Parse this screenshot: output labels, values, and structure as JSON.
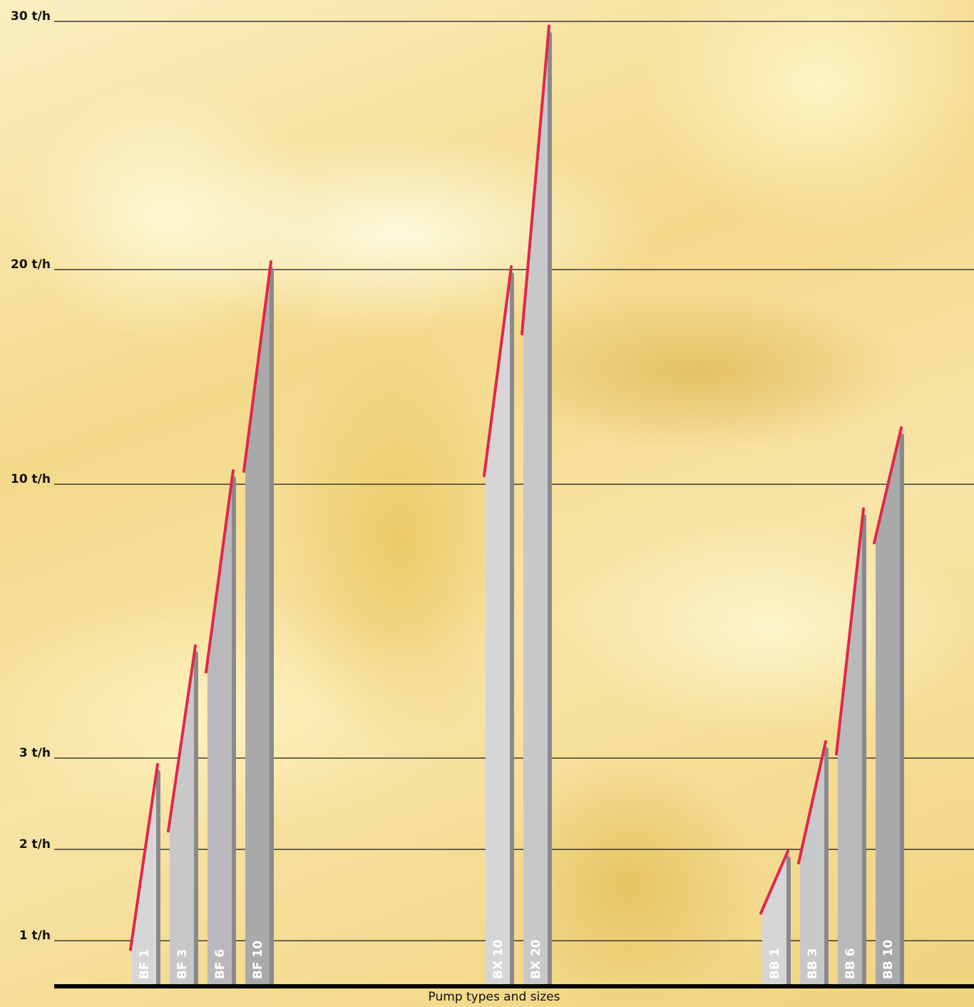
{
  "chart_data": {
    "type": "bar",
    "title": "",
    "xlabel": "Pump types and sizes",
    "ylabel": "",
    "scale": "nonlinear",
    "y_ticks": [
      "1 t/h",
      "2 t/h",
      "3 t/h",
      "10 t/h",
      "20 t/h",
      "30 t/h"
    ],
    "y_tick_values": [
      1,
      2,
      3,
      10,
      20,
      30
    ],
    "grid": true,
    "legend": "none",
    "unit": "t/h",
    "groups": [
      {
        "bars": [
          {
            "label": "BF 1",
            "min": 0.9,
            "max": 2.9
          },
          {
            "label": "BF 3",
            "min": 2.2,
            "max": 5.8
          },
          {
            "label": "BF 6",
            "min": 5.2,
            "max": 10.5
          },
          {
            "label": "BF 10",
            "min": 10.6,
            "max": 20.2
          }
        ]
      },
      {
        "bars": [
          {
            "label": "BX 10",
            "min": 10.4,
            "max": 20.0
          },
          {
            "label": "BX 20",
            "min": 17.0,
            "max": 29.7
          }
        ]
      },
      {
        "bars": [
          {
            "label": "BB 1",
            "min": 1.3,
            "max": 1.95
          },
          {
            "label": "BB 3",
            "min": 1.85,
            "max": 3.35
          },
          {
            "label": "BB 6",
            "min": 3.1,
            "max": 9.3
          },
          {
            "label": "BB 10",
            "min": 8.5,
            "max": 12.5
          }
        ]
      }
    ],
    "colors": {
      "range_line": "#e0284a",
      "bar_shades": [
        "#d6d6d8",
        "#c8c8cb",
        "#b9b9bc",
        "#a9a9ac"
      ],
      "bar_edge": "#8a8a8d",
      "grid_line": "#1a1a1a",
      "baseline": "#000000"
    }
  }
}
